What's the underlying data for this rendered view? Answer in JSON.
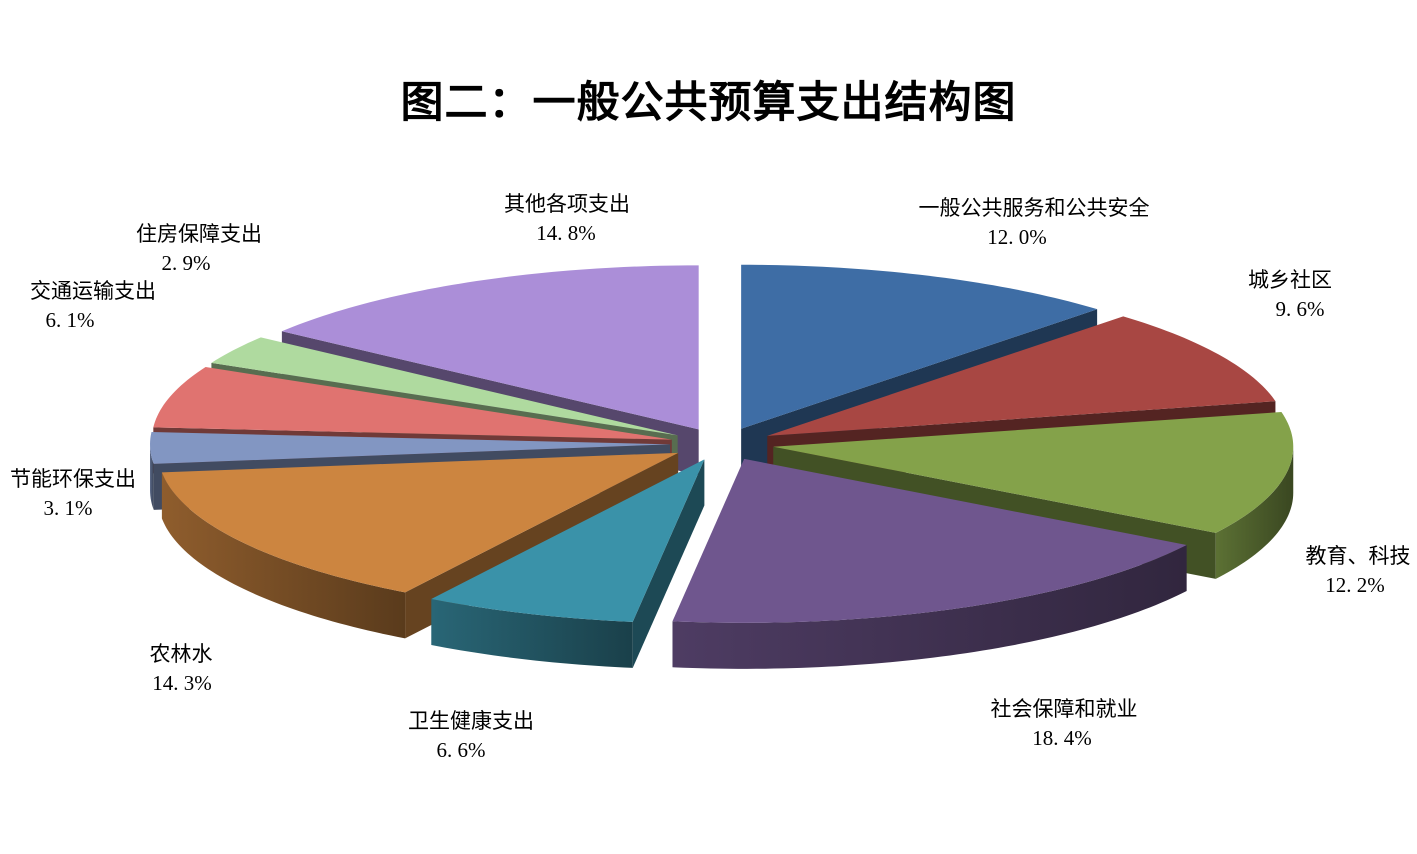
{
  "title": "图二：一般公共预算支出结构图",
  "chart_data": {
    "type": "pie",
    "style": "3d-exploded",
    "title": "图二：一般公共预算支出结构图",
    "start_angle_deg": 0,
    "direction": "clockwise",
    "unit": "%",
    "background_color": "#ffffff",
    "slices": [
      {
        "id": "general-public-services",
        "label": "一般公共服务和公共安全",
        "value": 12.0,
        "value_label": "12. 0%",
        "color": "#3E6DA5"
      },
      {
        "id": "urban-rural-community",
        "label": "城乡社区",
        "value": 9.6,
        "value_label": "9. 6%",
        "color": "#A84743"
      },
      {
        "id": "education-science",
        "label": "教育、科技",
        "value": 12.2,
        "value_label": "12. 2%",
        "color": "#84A24A"
      },
      {
        "id": "social-security-employment",
        "label": "社会保障和就业",
        "value": 18.4,
        "value_label": "18. 4%",
        "color": "#6F568E"
      },
      {
        "id": "health",
        "label": "卫生健康支出",
        "value": 6.6,
        "value_label": "6. 6%",
        "color": "#3A92A9"
      },
      {
        "id": "agriculture-forestry-water",
        "label": "农林水",
        "value": 14.3,
        "value_label": "14. 3%",
        "color": "#CC8540"
      },
      {
        "id": "energy-conservation",
        "label": "节能环保支出",
        "value": 3.1,
        "value_label": "3. 1%",
        "color": "#8296C2"
      },
      {
        "id": "transportation",
        "label": "交通运输支出",
        "value": 6.1,
        "value_label": "6. 1%",
        "color": "#E07370"
      },
      {
        "id": "housing-security",
        "label": "住房保障支出",
        "value": 2.9,
        "value_label": "2. 9%",
        "color": "#AFDA9F"
      },
      {
        "id": "other",
        "label": "其他各项支出",
        "value": 14.8,
        "value_label": "14. 8%",
        "color": "#AB8ED8"
      }
    ]
  }
}
